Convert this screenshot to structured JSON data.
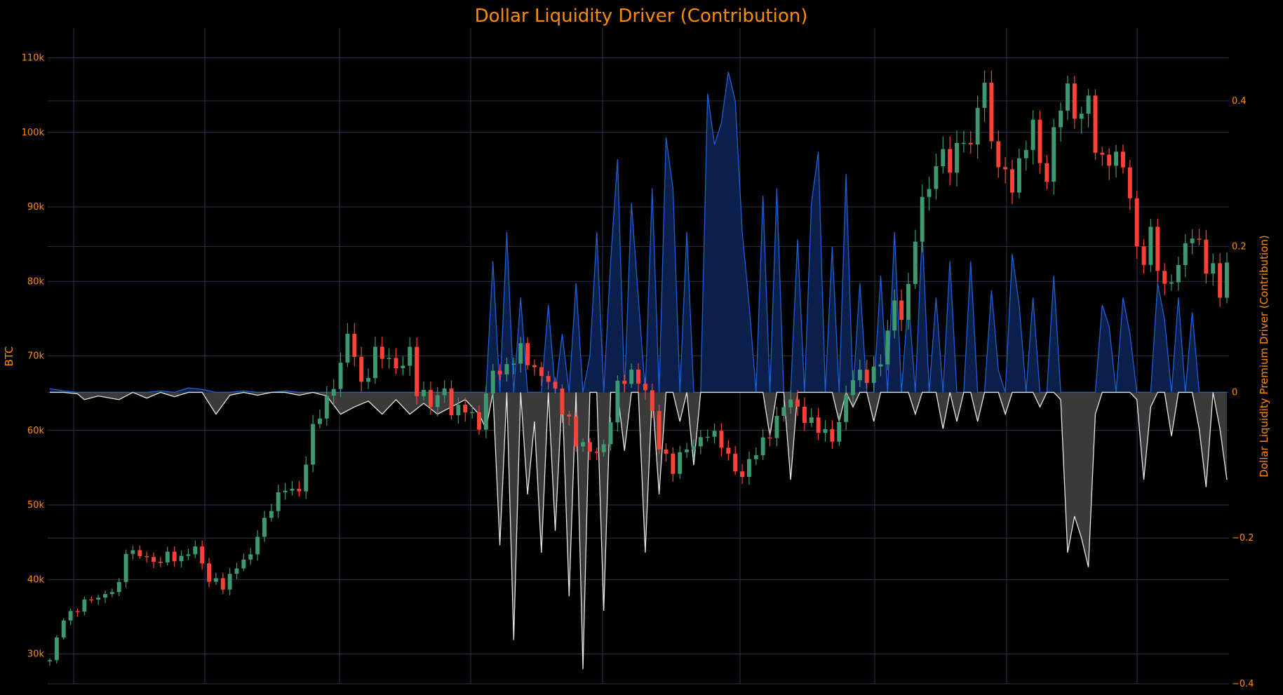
{
  "chart_data": {
    "type": "line",
    "title": "Dollar Liquidity Driver (Contribution)",
    "left_axis": {
      "label": "BTC",
      "range": [
        26000,
        114000
      ],
      "ticks": [
        30000,
        40000,
        50000,
        60000,
        70000,
        80000,
        90000,
        100000,
        110000
      ],
      "tick_labels": [
        "30k",
        "40k",
        "50k",
        "60k",
        "70k",
        "80k",
        "90k",
        "100k",
        "110k"
      ]
    },
    "right_axis": {
      "label": "Dollar Liquidity Premium Driver (Contribution)",
      "range": [
        -0.4,
        0.5
      ],
      "ticks": [
        -0.4,
        -0.2,
        0,
        0.2,
        0.4
      ],
      "tick_labels": [
        "−0.4",
        "−0.2",
        "0",
        "0.2",
        "0.4"
      ]
    },
    "grid": true,
    "background": "#000000",
    "colors": {
      "up": "#3d9970",
      "down": "#ff4136",
      "positive_line": "#1f5fd6",
      "positive_fill": "#0a1f4a",
      "negative_line": "#e6e6e6",
      "negative_fill": "#3a3a3a",
      "grid": "#2a3350",
      "text": "#ff8c00"
    },
    "series": [
      {
        "name": "BTC",
        "kind": "candlestick",
        "close_path": [
          [
            0,
            29000
          ],
          [
            1,
            32000
          ],
          [
            2,
            35000
          ],
          [
            4,
            36000
          ],
          [
            6,
            37500
          ],
          [
            8,
            38000
          ],
          [
            10,
            39000
          ],
          [
            11,
            44000
          ],
          [
            13,
            43500
          ],
          [
            15,
            42000
          ],
          [
            17,
            43500
          ],
          [
            19,
            42500
          ],
          [
            21,
            44500
          ],
          [
            23,
            40000
          ],
          [
            25,
            39000
          ],
          [
            27,
            42000
          ],
          [
            29,
            43000
          ],
          [
            30,
            46000
          ],
          [
            32,
            50000
          ],
          [
            34,
            52000
          ],
          [
            36,
            52000
          ],
          [
            38,
            60000
          ],
          [
            40,
            64000
          ],
          [
            42,
            69000
          ],
          [
            43,
            72500
          ],
          [
            44,
            70000
          ],
          [
            45,
            66000
          ],
          [
            47,
            70500
          ],
          [
            50,
            68500
          ],
          [
            52,
            70500
          ],
          [
            53,
            65000
          ],
          [
            55,
            64000
          ],
          [
            57,
            65500
          ],
          [
            58,
            62000
          ],
          [
            60,
            63500
          ],
          [
            62,
            60500
          ],
          [
            64,
            68000
          ],
          [
            66,
            68500
          ],
          [
            68,
            70500
          ],
          [
            70,
            68500
          ],
          [
            72,
            66500
          ],
          [
            74,
            63000
          ],
          [
            75,
            61500
          ],
          [
            76,
            58500
          ],
          [
            78,
            57000
          ],
          [
            80,
            58000
          ],
          [
            82,
            65500
          ],
          [
            84,
            68000
          ],
          [
            86,
            65500
          ],
          [
            88,
            58000
          ],
          [
            90,
            55000
          ],
          [
            91,
            56500
          ],
          [
            93,
            58000
          ],
          [
            95,
            60000
          ],
          [
            97,
            58000
          ],
          [
            99,
            55000
          ],
          [
            100,
            54000
          ],
          [
            102,
            57000
          ],
          [
            104,
            60000
          ],
          [
            106,
            63000
          ],
          [
            107,
            64000
          ],
          [
            109,
            62000
          ],
          [
            111,
            60000
          ],
          [
            113,
            59000
          ],
          [
            114,
            61500
          ],
          [
            116,
            67000
          ],
          [
            118,
            67500
          ],
          [
            120,
            69000
          ],
          [
            121,
            73000
          ],
          [
            122,
            77000
          ],
          [
            123,
            76000
          ],
          [
            124,
            79000
          ],
          [
            125,
            86000
          ],
          [
            126,
            90000
          ],
          [
            127,
            93000
          ],
          [
            128,
            96000
          ],
          [
            129,
            97500
          ],
          [
            130,
            95000
          ],
          [
            131,
            97000
          ],
          [
            132,
            100000
          ],
          [
            133,
            98000
          ],
          [
            134,
            104000
          ],
          [
            135,
            106000
          ],
          [
            136,
            98000
          ],
          [
            137,
            96500
          ],
          [
            138,
            94500
          ],
          [
            139,
            93000
          ],
          [
            140,
            95000
          ],
          [
            141,
            98000
          ],
          [
            142,
            102000
          ],
          [
            143,
            96000
          ],
          [
            144,
            94000
          ],
          [
            145,
            99000
          ],
          [
            146,
            104000
          ],
          [
            147,
            106000
          ],
          [
            148,
            103000
          ],
          [
            149,
            102000
          ],
          [
            150,
            104000
          ],
          [
            151,
            98000
          ],
          [
            152,
            96500
          ],
          [
            153,
            97000
          ],
          [
            154,
            96000
          ],
          [
            155,
            95500
          ],
          [
            156,
            91000
          ],
          [
            157,
            85000
          ],
          [
            158,
            83000
          ],
          [
            159,
            86000
          ],
          [
            160,
            82000
          ],
          [
            161,
            79000
          ],
          [
            162,
            81000
          ],
          [
            163,
            82000
          ],
          [
            164,
            84500
          ],
          [
            165,
            86000
          ],
          [
            166,
            85000
          ],
          [
            167,
            82500
          ],
          [
            168,
            81500
          ],
          [
            169,
            78000
          ],
          [
            170,
            82000
          ]
        ],
        "total_bars": 171
      },
      {
        "name": "Dollar Liquidity Premium Driver (Contribution)",
        "kind": "area",
        "points": [
          [
            0,
            0.005
          ],
          [
            2,
            0.002
          ],
          [
            4,
            -0.002
          ],
          [
            5,
            -0.01
          ],
          [
            7,
            -0.005
          ],
          [
            10,
            -0.01
          ],
          [
            12,
            0.0
          ],
          [
            14,
            -0.008
          ],
          [
            16,
            0.002
          ],
          [
            18,
            -0.006
          ],
          [
            20,
            0.006
          ],
          [
            22,
            0.004
          ],
          [
            24,
            -0.03
          ],
          [
            26,
            -0.004
          ],
          [
            28,
            0.002
          ],
          [
            30,
            -0.004
          ],
          [
            32,
            0.0
          ],
          [
            34,
            0.002
          ],
          [
            36,
            -0.004
          ],
          [
            38,
            0.0
          ],
          [
            40,
            -0.005
          ],
          [
            42,
            -0.03
          ],
          [
            44,
            -0.02
          ],
          [
            46,
            -0.012
          ],
          [
            48,
            -0.03
          ],
          [
            50,
            -0.01
          ],
          [
            52,
            -0.03
          ],
          [
            54,
            -0.015
          ],
          [
            56,
            -0.03
          ],
          [
            58,
            -0.02
          ],
          [
            60,
            -0.01
          ],
          [
            62,
            -0.03
          ],
          [
            63,
            -0.05
          ],
          [
            64,
            0.18
          ],
          [
            65,
            -0.21
          ],
          [
            66,
            0.22
          ],
          [
            67,
            -0.34
          ],
          [
            68,
            0.13
          ],
          [
            69,
            -0.14
          ],
          [
            70,
            -0.04
          ],
          [
            71,
            -0.22
          ],
          [
            72,
            0.12
          ],
          [
            73,
            -0.19
          ],
          [
            74,
            0.08
          ],
          [
            75,
            -0.28
          ],
          [
            76,
            0.15
          ],
          [
            77,
            -0.38
          ],
          [
            78,
            0.05
          ],
          [
            79,
            0.22
          ],
          [
            80,
            -0.3
          ],
          [
            81,
            0.18
          ],
          [
            82,
            0.32
          ],
          [
            83,
            -0.08
          ],
          [
            84,
            0.26
          ],
          [
            85,
            0.13
          ],
          [
            86,
            -0.22
          ],
          [
            87,
            0.28
          ],
          [
            88,
            -0.14
          ],
          [
            89,
            0.35
          ],
          [
            90,
            0.28
          ],
          [
            91,
            -0.04
          ],
          [
            92,
            0.22
          ],
          [
            93,
            -0.1
          ],
          [
            94,
            0.0
          ],
          [
            95,
            0.41
          ],
          [
            96,
            0.34
          ],
          [
            97,
            0.37
          ],
          [
            98,
            0.44
          ],
          [
            99,
            0.4
          ],
          [
            100,
            0.22
          ],
          [
            101,
            0.12
          ],
          [
            102,
            0.0
          ],
          [
            103,
            0.27
          ],
          [
            104,
            -0.06
          ],
          [
            105,
            0.28
          ],
          [
            106,
            0.0
          ],
          [
            107,
            -0.12
          ],
          [
            108,
            0.21
          ],
          [
            109,
            0.0
          ],
          [
            110,
            0.26
          ],
          [
            111,
            0.33
          ],
          [
            112,
            0.0
          ],
          [
            113,
            0.2
          ],
          [
            114,
            -0.04
          ],
          [
            115,
            0.3
          ],
          [
            116,
            -0.02
          ],
          [
            117,
            0.15
          ],
          [
            118,
            0.0
          ],
          [
            119,
            -0.04
          ],
          [
            120,
            0.16
          ],
          [
            121,
            0.0
          ],
          [
            122,
            0.22
          ],
          [
            123,
            0.0
          ],
          [
            124,
            0.13
          ],
          [
            125,
            -0.03
          ],
          [
            126,
            0.22
          ],
          [
            127,
            0.0
          ],
          [
            128,
            0.13
          ],
          [
            129,
            -0.05
          ],
          [
            130,
            0.18
          ],
          [
            131,
            -0.04
          ],
          [
            132,
            0.0
          ],
          [
            133,
            0.18
          ],
          [
            134,
            -0.04
          ],
          [
            135,
            0.0
          ],
          [
            136,
            0.14
          ],
          [
            137,
            0.03
          ],
          [
            138,
            -0.03
          ],
          [
            139,
            0.19
          ],
          [
            140,
            0.12
          ],
          [
            141,
            0.0
          ],
          [
            142,
            0.13
          ],
          [
            143,
            -0.02
          ],
          [
            144,
            0.0
          ],
          [
            145,
            0.16
          ],
          [
            146,
            -0.01
          ],
          [
            147,
            -0.22
          ],
          [
            148,
            -0.17
          ],
          [
            149,
            -0.2
          ],
          [
            150,
            -0.24
          ],
          [
            151,
            -0.03
          ],
          [
            152,
            0.12
          ],
          [
            153,
            0.09
          ],
          [
            154,
            0.0
          ],
          [
            155,
            0.13
          ],
          [
            156,
            0.08
          ],
          [
            157,
            -0.01
          ],
          [
            158,
            -0.12
          ],
          [
            159,
            -0.02
          ],
          [
            160,
            0.15
          ],
          [
            161,
            0.1
          ],
          [
            162,
            -0.06
          ],
          [
            163,
            0.13
          ],
          [
            164,
            0.0
          ],
          [
            165,
            0.11
          ],
          [
            166,
            -0.05
          ],
          [
            167,
            -0.13
          ],
          [
            168,
            0.0
          ],
          [
            169,
            -0.05
          ],
          [
            170,
            -0.12
          ]
        ]
      }
    ]
  }
}
